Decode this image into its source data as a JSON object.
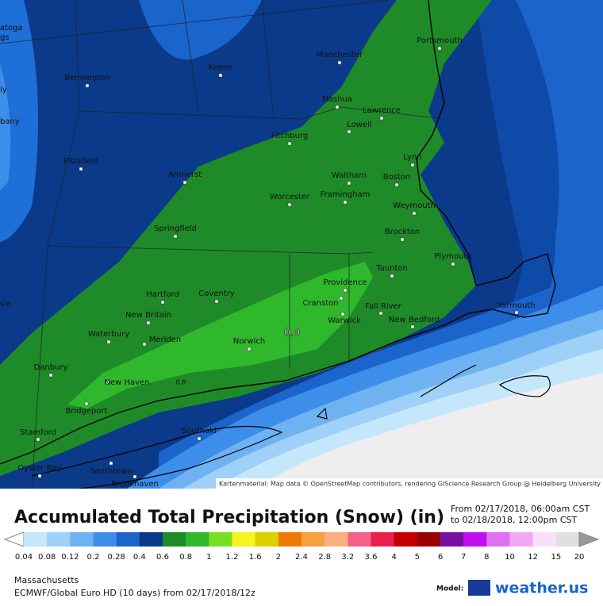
{
  "map": {
    "cities": [
      "Portsmouth",
      "Manchester",
      "Keene",
      "Bennington",
      "Nashua",
      "Lawrence",
      "Lowell",
      "Fitchburg",
      "Pittsfield",
      "Amherst",
      "Lynn",
      "Waltham",
      "Boston",
      "Worcester",
      "Framingham",
      "Weymouth",
      "Springfield",
      "Brockton",
      "Plymouth",
      "Taunton",
      "Providence",
      "Hartford",
      "Coventry",
      "Cranston",
      "Fall River",
      "Yarmouth",
      "New Britain",
      "Warwick",
      "New Bedford",
      "Waterbury",
      "Meriden",
      "Norwich",
      "Danbury",
      "New Haven",
      "Bridgeport",
      "Stamford",
      "Southold",
      "Oyster Bay",
      "Smithtown",
      "Brookhaven"
    ],
    "edge_labels": [
      "atoga",
      "gs",
      "ly",
      "bany",
      "sie"
    ],
    "contour_labels": [
      "0.9",
      "0.8"
    ],
    "attribution": "Kartenmaterial: Map data © OpenStreetMap contributors, rendering GIScience Research Group @ Heidelberg University"
  },
  "legend": {
    "title": "Accumulated Total Precipitation (Snow) (in)",
    "period": [
      "From 02/17/2018, 06:00am CST",
      "to 02/18/2018, 12:00pm CST"
    ],
    "labels": [
      "0.04",
      "0.08",
      "0.12",
      "0.2",
      "0.28",
      "0.4",
      "0.6",
      "0.8",
      "1",
      "1.2",
      "1.6",
      "2",
      "2.4",
      "2.8",
      "3.2",
      "3.6",
      "4",
      "5",
      "6",
      "7",
      "8",
      "10",
      "12",
      "15",
      "20"
    ],
    "colors": [
      "#c5e7fb",
      "#9fd0f7",
      "#6eb2f2",
      "#3c8eea",
      "#1a64cc",
      "#0b3889",
      "#1e8b28",
      "#2fb82c",
      "#78e020",
      "#f4f420",
      "#dcd000",
      "#f07a00",
      "#f6a040",
      "#f8b080",
      "#f4608a",
      "#e8204e",
      "#c40000",
      "#9a0000",
      "#7a10a0",
      "#c010f0",
      "#e070f0",
      "#f0a8f4",
      "#f8e0f8",
      "#e0e0e0"
    ]
  },
  "footer": {
    "region": "Massachusetts",
    "model_run": "ECMWF/Global Euro HD (10 days) from 02/17/2018/12z",
    "model_label": "Model:",
    "brand": "weather.us"
  }
}
